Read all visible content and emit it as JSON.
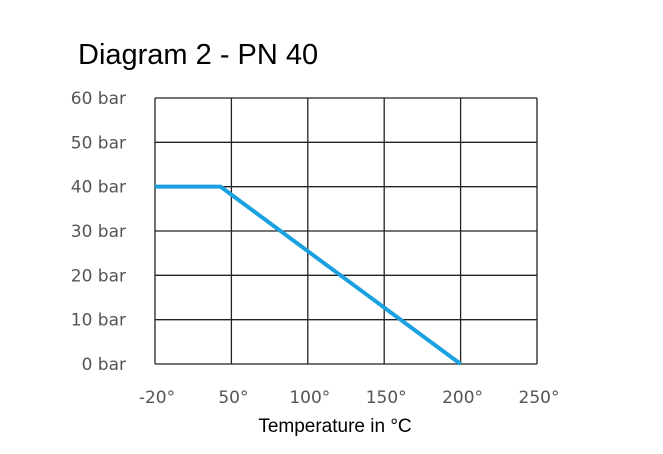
{
  "chart_data": {
    "type": "line",
    "title": "Diagram 2 - PN 40",
    "xlabel": "Temperature in °C",
    "ylabel": "",
    "x_ticks": [
      "-20°",
      "50°",
      "100°",
      "150°",
      "200°",
      "250°"
    ],
    "y_ticks": [
      "0 bar",
      "10 bar",
      "20 bar",
      "30 bar",
      "40 bar",
      "50 bar",
      "60 bar"
    ],
    "x_tick_values": [
      -20,
      50,
      100,
      150,
      200,
      250
    ],
    "y_tick_values": [
      0,
      10,
      20,
      30,
      40,
      50,
      60
    ],
    "ylim": [
      0,
      60
    ],
    "grid": true,
    "series": [
      {
        "x": [
          -20,
          40,
          200
        ],
        "y": [
          40,
          40,
          0
        ],
        "color": "#1ba1e2"
      }
    ]
  }
}
